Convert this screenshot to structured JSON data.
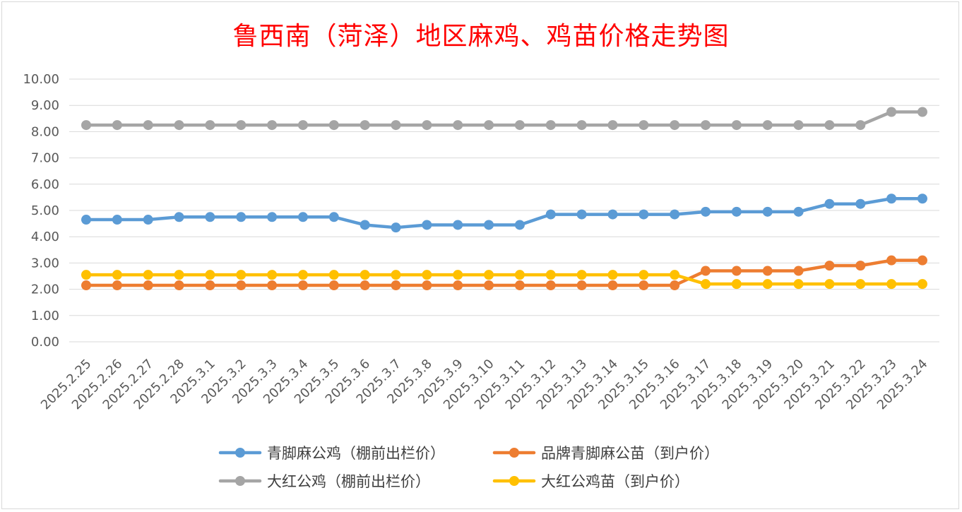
{
  "chart_data": {
    "type": "line",
    "title": "鲁西南（菏泽）地区麻鸡、鸡苗价格走势图",
    "xlabel": "",
    "ylabel": "",
    "ylim": [
      0,
      10
    ],
    "yticks": [
      "0.00",
      "1.00",
      "2.00",
      "3.00",
      "4.00",
      "5.00",
      "6.00",
      "7.00",
      "8.00",
      "9.00",
      "10.00"
    ],
    "grid": true,
    "legend_position": "bottom",
    "categories": [
      "2025.2.25",
      "2025.2.26",
      "2025.2.27",
      "2025.2.28",
      "2025.3.1",
      "2025.3.2",
      "2025.3.3",
      "2025.3.4",
      "2025.3.5",
      "2025.3.6",
      "2025.3.7",
      "2025.3.8",
      "2025.3.9",
      "2025.3.10",
      "2025.3.11",
      "2025.3.12",
      "2025.3.13",
      "2025.3.14",
      "2025.3.15",
      "2025.3.16",
      "2025.3.17",
      "2025.3.18",
      "2025.3.19",
      "2025.3.20",
      "2025.3.21",
      "2025.3.22",
      "2025.3.23",
      "2025.3.24"
    ],
    "series": [
      {
        "name": "青脚麻公鸡（棚前出栏价）",
        "color": "#5b9bd5",
        "values": [
          4.65,
          4.65,
          4.65,
          4.75,
          4.75,
          4.75,
          4.75,
          4.75,
          4.75,
          4.45,
          4.35,
          4.45,
          4.45,
          4.45,
          4.45,
          4.85,
          4.85,
          4.85,
          4.85,
          4.85,
          4.95,
          4.95,
          4.95,
          4.95,
          5.25,
          5.25,
          5.45,
          5.45
        ]
      },
      {
        "name": "品牌青脚麻公苗（到户价）",
        "color": "#ed7d31",
        "values": [
          2.15,
          2.15,
          2.15,
          2.15,
          2.15,
          2.15,
          2.15,
          2.15,
          2.15,
          2.15,
          2.15,
          2.15,
          2.15,
          2.15,
          2.15,
          2.15,
          2.15,
          2.15,
          2.15,
          2.15,
          2.7,
          2.7,
          2.7,
          2.7,
          2.9,
          2.9,
          3.1,
          3.1
        ]
      },
      {
        "name": "大红公鸡（棚前出栏价）",
        "color": "#a5a5a5",
        "values": [
          8.25,
          8.25,
          8.25,
          8.25,
          8.25,
          8.25,
          8.25,
          8.25,
          8.25,
          8.25,
          8.25,
          8.25,
          8.25,
          8.25,
          8.25,
          8.25,
          8.25,
          8.25,
          8.25,
          8.25,
          8.25,
          8.25,
          8.25,
          8.25,
          8.25,
          8.25,
          8.75,
          8.75
        ]
      },
      {
        "name": "大红公鸡苗（到户价）",
        "color": "#ffc000",
        "values": [
          2.55,
          2.55,
          2.55,
          2.55,
          2.55,
          2.55,
          2.55,
          2.55,
          2.55,
          2.55,
          2.55,
          2.55,
          2.55,
          2.55,
          2.55,
          2.55,
          2.55,
          2.55,
          2.55,
          2.55,
          2.2,
          2.2,
          2.2,
          2.2,
          2.2,
          2.2,
          2.2,
          2.2
        ]
      }
    ]
  }
}
